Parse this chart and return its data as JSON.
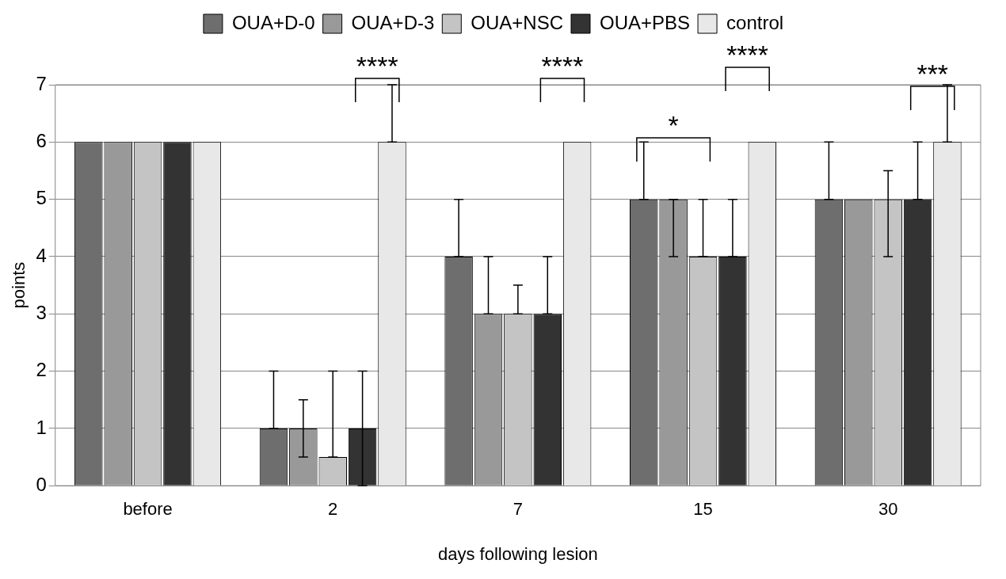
{
  "chart_data": {
    "type": "bar",
    "xlabel": "days following lesion",
    "ylabel": "points",
    "categories": [
      "before",
      "2",
      "7",
      "15",
      "30"
    ],
    "series": [
      {
        "name": "OUA+D-0",
        "color": "#6e6e6e",
        "values": [
          6,
          1,
          4,
          5,
          5
        ],
        "errors": [
          null,
          [
            1,
            2
          ],
          [
            4,
            5
          ],
          [
            5,
            6
          ],
          [
            5,
            6
          ]
        ]
      },
      {
        "name": "OUA+D-3",
        "color": "#999999",
        "values": [
          6,
          1,
          3,
          5,
          5
        ],
        "errors": [
          null,
          [
            0.5,
            1.5
          ],
          [
            3,
            4
          ],
          [
            4,
            5
          ],
          null
        ]
      },
      {
        "name": "OUA+NSC",
        "color": "#c4c4c4",
        "values": [
          6,
          0.5,
          3,
          4,
          5
        ],
        "errors": [
          null,
          [
            0.5,
            2
          ],
          [
            3,
            3.5
          ],
          [
            4,
            5
          ],
          [
            4,
            5.5
          ]
        ]
      },
      {
        "name": "OUA+PBS",
        "color": "#333333",
        "values": [
          6,
          1,
          3,
          4,
          5
        ],
        "errors": [
          null,
          [
            0,
            2
          ],
          [
            3,
            4
          ],
          [
            4,
            5
          ],
          [
            5,
            6
          ]
        ]
      },
      {
        "name": "control",
        "color": "#e8e8e8",
        "values": [
          6,
          6,
          6,
          6,
          6
        ],
        "errors": [
          null,
          [
            6,
            7
          ],
          null,
          null,
          [
            6,
            7
          ]
        ]
      }
    ],
    "ylim": [
      0,
      7
    ],
    "yticks": [
      0,
      1,
      2,
      3,
      4,
      5,
      6,
      7
    ],
    "grid": "y",
    "legend": "top",
    "annotations": [
      "****",
      "****",
      "*",
      "****",
      "***"
    ]
  }
}
